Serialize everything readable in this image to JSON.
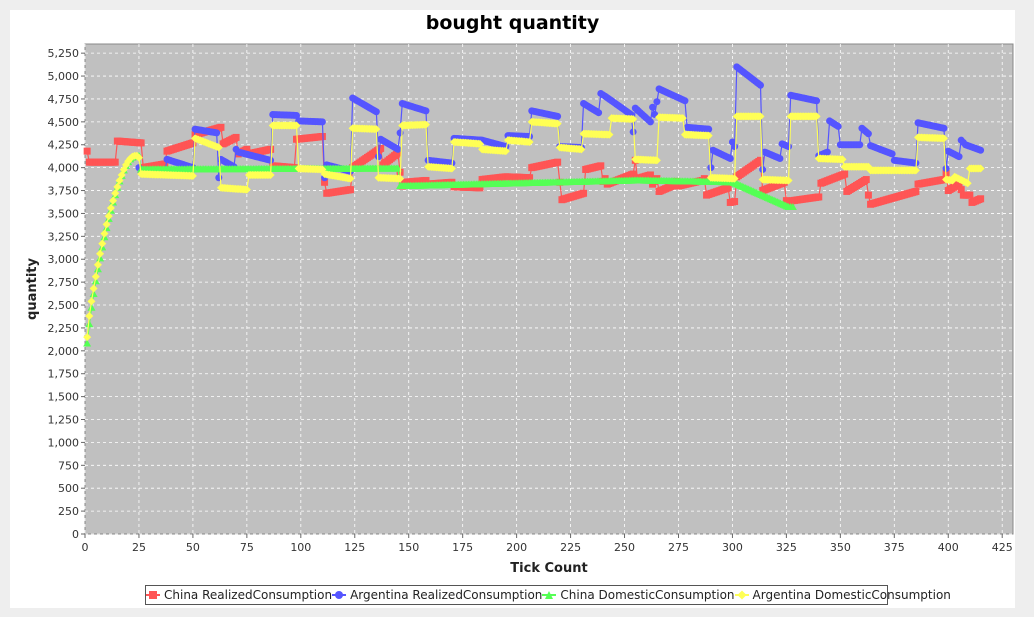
{
  "chart_data": {
    "type": "line",
    "title": "bought quantity",
    "xlabel": "Tick Count",
    "ylabel": "quantity",
    "xlim": [
      0,
      430
    ],
    "ylim": [
      0,
      5350
    ],
    "xticks": [
      0,
      25,
      50,
      75,
      100,
      125,
      150,
      175,
      200,
      225,
      250,
      275,
      300,
      325,
      350,
      375,
      400,
      425
    ],
    "xtick_labels": [
      "0",
      "25",
      "50",
      "75",
      "100",
      "125",
      "150",
      "175",
      "200",
      "225",
      "250",
      "275",
      "300",
      "325",
      "350",
      "375",
      "400",
      "425"
    ],
    "yticks": [
      0,
      250,
      500,
      750,
      1000,
      1250,
      1500,
      1750,
      2000,
      2250,
      2500,
      2750,
      3000,
      3250,
      3500,
      3750,
      4000,
      4250,
      4500,
      4750,
      5000,
      5250
    ],
    "ytick_labels": [
      "0",
      "250",
      "500",
      "750",
      "1,000",
      "1,250",
      "1,500",
      "1,750",
      "2,000",
      "2,250",
      "2,500",
      "2,750",
      "3,000",
      "3,250",
      "3,500",
      "3,750",
      "4,000",
      "4,250",
      "4,500",
      "4,750",
      "5,000",
      "5,250"
    ],
    "grid": true,
    "legend_position": "bottom",
    "series": [
      {
        "name": "China RealizedConsumption",
        "color": "#ff5555",
        "marker": "square",
        "points": [
          [
            1,
            4180
          ],
          [
            2,
            4060
          ],
          [
            14,
            4060
          ],
          [
            15,
            4290
          ],
          [
            26,
            4270
          ],
          [
            27,
            4000
          ],
          [
            37,
            4040
          ],
          [
            38,
            4180
          ],
          [
            50,
            4270
          ],
          [
            51,
            4360
          ],
          [
            63,
            4440
          ],
          [
            64,
            4260
          ],
          [
            70,
            4330
          ],
          [
            71,
            4150
          ],
          [
            75,
            4200
          ],
          [
            76,
            4150
          ],
          [
            86,
            4200
          ],
          [
            87,
            4020
          ],
          [
            97,
            4000
          ],
          [
            98,
            4310
          ],
          [
            110,
            4340
          ],
          [
            111,
            3840
          ],
          [
            112,
            3720
          ],
          [
            123,
            3760
          ],
          [
            124,
            4000
          ],
          [
            137,
            4210
          ],
          [
            138,
            4030
          ],
          [
            145,
            4160
          ],
          [
            146,
            3950
          ],
          [
            147,
            3800
          ],
          [
            148,
            3840
          ],
          [
            158,
            3860
          ],
          [
            159,
            3820
          ],
          [
            170,
            3840
          ],
          [
            171,
            3790
          ],
          [
            183,
            3780
          ],
          [
            184,
            3870
          ],
          [
            195,
            3900
          ],
          [
            206,
            3890
          ],
          [
            207,
            4000
          ],
          [
            219,
            4060
          ],
          [
            220,
            3840
          ],
          [
            221,
            3650
          ],
          [
            231,
            3720
          ],
          [
            232,
            3980
          ],
          [
            239,
            4020
          ],
          [
            240,
            3850
          ],
          [
            241,
            3880
          ],
          [
            242,
            3820
          ],
          [
            254,
            3930
          ],
          [
            255,
            4080
          ],
          [
            256,
            3880
          ],
          [
            262,
            3920
          ],
          [
            263,
            3820
          ],
          [
            265,
            3880
          ],
          [
            266,
            3740
          ],
          [
            272,
            3800
          ],
          [
            274,
            3850
          ],
          [
            275,
            3800
          ],
          [
            286,
            3860
          ],
          [
            287,
            3880
          ],
          [
            288,
            3700
          ],
          [
            298,
            3780
          ],
          [
            299,
            3620
          ],
          [
            301,
            3630
          ],
          [
            302,
            3900
          ],
          [
            313,
            4080
          ],
          [
            314,
            3750
          ],
          [
            324,
            3840
          ],
          [
            325,
            3640
          ],
          [
            327,
            3580
          ],
          [
            328,
            3640
          ],
          [
            340,
            3680
          ],
          [
            341,
            3830
          ],
          [
            352,
            3930
          ],
          [
            353,
            3740
          ],
          [
            362,
            3870
          ],
          [
            363,
            3700
          ],
          [
            364,
            3600
          ],
          [
            385,
            3740
          ],
          [
            386,
            3820
          ],
          [
            398,
            3870
          ],
          [
            399,
            3940
          ],
          [
            400,
            3750
          ],
          [
            405,
            3820
          ],
          [
            407,
            3700
          ],
          [
            410,
            3700
          ],
          [
            411,
            3620
          ],
          [
            415,
            3660
          ]
        ]
      },
      {
        "name": "Argentina RealizedConsumption",
        "color": "#5555ff",
        "marker": "circle",
        "points": [
          [
            25,
            4000
          ],
          [
            26,
            3950
          ],
          [
            37,
            3960
          ],
          [
            38,
            4090
          ],
          [
            50,
            4000
          ],
          [
            51,
            4420
          ],
          [
            61,
            4380
          ],
          [
            62,
            3890
          ],
          [
            63,
            4090
          ],
          [
            69,
            4010
          ],
          [
            70,
            4200
          ],
          [
            71,
            4170
          ],
          [
            86,
            4080
          ],
          [
            87,
            4580
          ],
          [
            98,
            4570
          ],
          [
            99,
            4510
          ],
          [
            110,
            4500
          ],
          [
            111,
            3890
          ],
          [
            112,
            4030
          ],
          [
            123,
            3960
          ],
          [
            124,
            4760
          ],
          [
            135,
            4610
          ],
          [
            136,
            4120
          ],
          [
            137,
            4310
          ],
          [
            145,
            4200
          ],
          [
            146,
            4380
          ],
          [
            147,
            4700
          ],
          [
            158,
            4620
          ],
          [
            159,
            4080
          ],
          [
            170,
            4050
          ],
          [
            171,
            4320
          ],
          [
            184,
            4300
          ],
          [
            195,
            4230
          ],
          [
            196,
            4350
          ],
          [
            206,
            4340
          ],
          [
            207,
            4620
          ],
          [
            219,
            4560
          ],
          [
            220,
            4230
          ],
          [
            230,
            4220
          ],
          [
            231,
            4700
          ],
          [
            238,
            4600
          ],
          [
            239,
            4810
          ],
          [
            241,
            4780
          ],
          [
            253,
            4580
          ],
          [
            254,
            4390
          ],
          [
            255,
            4650
          ],
          [
            262,
            4500
          ],
          [
            263,
            4660
          ],
          [
            264,
            4580
          ],
          [
            266,
            4860
          ],
          [
            278,
            4730
          ],
          [
            279,
            4440
          ],
          [
            289,
            4420
          ],
          [
            290,
            4000
          ],
          [
            291,
            4190
          ],
          [
            299,
            4100
          ],
          [
            300,
            4280
          ],
          [
            301,
            4230
          ],
          [
            302,
            5100
          ],
          [
            313,
            4900
          ],
          [
            314,
            3980
          ],
          [
            315,
            4170
          ],
          [
            322,
            4100
          ],
          [
            323,
            4260
          ],
          [
            326,
            4230
          ],
          [
            327,
            4790
          ],
          [
            339,
            4730
          ],
          [
            340,
            4130
          ],
          [
            344,
            4170
          ],
          [
            345,
            4510
          ],
          [
            349,
            4450
          ],
          [
            350,
            4250
          ],
          [
            359,
            4250
          ],
          [
            360,
            4430
          ],
          [
            363,
            4370
          ],
          [
            364,
            4240
          ],
          [
            374,
            4150
          ],
          [
            375,
            4080
          ],
          [
            385,
            4050
          ],
          [
            386,
            4490
          ],
          [
            398,
            4430
          ],
          [
            399,
            3990
          ],
          [
            400,
            4180
          ],
          [
            405,
            4120
          ],
          [
            406,
            4300
          ],
          [
            408,
            4250
          ],
          [
            415,
            4190
          ]
        ]
      },
      {
        "name": "China DomesticConsumption",
        "color": "#55ff55",
        "marker": "triangle",
        "points": [
          [
            1,
            2080
          ],
          [
            2,
            2290
          ],
          [
            3,
            2470
          ],
          [
            4,
            2620
          ],
          [
            5,
            2760
          ],
          [
            6,
            2890
          ],
          [
            7,
            3010
          ],
          [
            8,
            3130
          ],
          [
            9,
            3240
          ],
          [
            10,
            3340
          ],
          [
            11,
            3440
          ],
          [
            12,
            3530
          ],
          [
            13,
            3620
          ],
          [
            14,
            3700
          ],
          [
            15,
            3780
          ],
          [
            16,
            3850
          ],
          [
            17,
            3910
          ],
          [
            18,
            3970
          ],
          [
            19,
            4020
          ],
          [
            20,
            4060
          ],
          [
            21,
            4090
          ],
          [
            22,
            4110
          ],
          [
            23,
            4120
          ],
          [
            24,
            4120
          ],
          [
            25,
            4130
          ],
          [
            26,
            3980
          ],
          [
            145,
            3990
          ],
          [
            146,
            3800
          ],
          [
            150,
            3800
          ],
          [
            256,
            3860
          ],
          [
            300,
            3840
          ],
          [
            326,
            3570
          ],
          [
            328,
            3570
          ]
        ]
      },
      {
        "name": "Argentina DomesticConsumption",
        "color": "#ffff55",
        "marker": "diamond",
        "points": [
          [
            1,
            2150
          ],
          [
            2,
            2380
          ],
          [
            3,
            2540
          ],
          [
            4,
            2680
          ],
          [
            5,
            2810
          ],
          [
            6,
            2940
          ],
          [
            7,
            3060
          ],
          [
            8,
            3170
          ],
          [
            9,
            3280
          ],
          [
            10,
            3380
          ],
          [
            11,
            3470
          ],
          [
            12,
            3560
          ],
          [
            13,
            3640
          ],
          [
            14,
            3720
          ],
          [
            15,
            3790
          ],
          [
            16,
            3860
          ],
          [
            17,
            3920
          ],
          [
            18,
            3980
          ],
          [
            19,
            4030
          ],
          [
            20,
            4070
          ],
          [
            21,
            4100
          ],
          [
            22,
            4120
          ],
          [
            23,
            4130
          ],
          [
            24,
            4130
          ],
          [
            25,
            4110
          ],
          [
            26,
            3930
          ],
          [
            50,
            3910
          ],
          [
            51,
            4320
          ],
          [
            62,
            4220
          ],
          [
            63,
            3780
          ],
          [
            75,
            3760
          ],
          [
            76,
            3920
          ],
          [
            86,
            3920
          ],
          [
            87,
            4460
          ],
          [
            98,
            4460
          ],
          [
            99,
            3990
          ],
          [
            110,
            3980
          ],
          [
            111,
            3930
          ],
          [
            123,
            3880
          ],
          [
            124,
            4430
          ],
          [
            135,
            4420
          ],
          [
            136,
            3890
          ],
          [
            146,
            3880
          ],
          [
            147,
            4460
          ],
          [
            158,
            4470
          ],
          [
            159,
            4010
          ],
          [
            170,
            3990
          ],
          [
            171,
            4280
          ],
          [
            183,
            4260
          ],
          [
            184,
            4200
          ],
          [
            195,
            4180
          ],
          [
            196,
            4300
          ],
          [
            206,
            4280
          ],
          [
            207,
            4500
          ],
          [
            219,
            4480
          ],
          [
            220,
            4220
          ],
          [
            230,
            4200
          ],
          [
            231,
            4370
          ],
          [
            243,
            4360
          ],
          [
            244,
            4540
          ],
          [
            254,
            4530
          ],
          [
            255,
            4090
          ],
          [
            265,
            4080
          ],
          [
            266,
            4550
          ],
          [
            277,
            4540
          ],
          [
            278,
            4360
          ],
          [
            289,
            4350
          ],
          [
            290,
            3890
          ],
          [
            301,
            3880
          ],
          [
            302,
            4560
          ],
          [
            313,
            4560
          ],
          [
            314,
            3870
          ],
          [
            326,
            3860
          ],
          [
            327,
            4560
          ],
          [
            339,
            4560
          ],
          [
            340,
            4100
          ],
          [
            351,
            4090
          ],
          [
            352,
            4010
          ],
          [
            363,
            4010
          ],
          [
            364,
            3970
          ],
          [
            385,
            3970
          ],
          [
            386,
            4330
          ],
          [
            398,
            4320
          ],
          [
            399,
            3870
          ],
          [
            402,
            3860
          ],
          [
            403,
            3900
          ],
          [
            409,
            3830
          ],
          [
            410,
            3990
          ],
          [
            415,
            3990
          ]
        ]
      }
    ]
  }
}
